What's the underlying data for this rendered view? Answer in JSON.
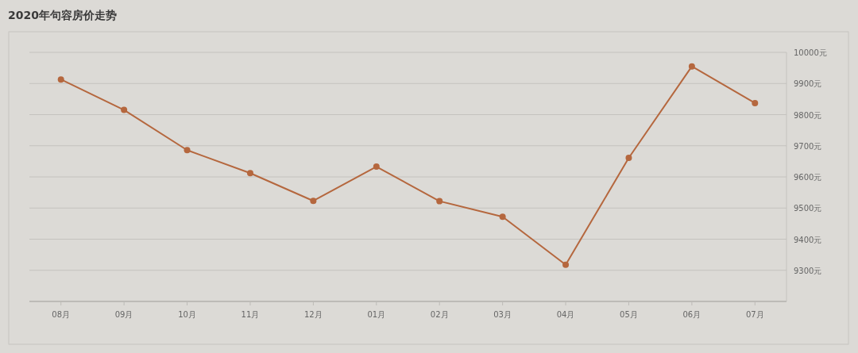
{
  "chart_data": {
    "type": "line",
    "title": "2020年句容房价走势",
    "categories": [
      "08月",
      "09月",
      "10月",
      "11月",
      "12月",
      "01月",
      "02月",
      "03月",
      "04月",
      "05月",
      "06月",
      "07月"
    ],
    "series": [
      {
        "color": "#b5673e",
        "values": [
          9913,
          9815,
          9686,
          9612,
          9523,
          9633,
          9522,
          9472,
          9318,
          9661,
          9955,
          9837
        ]
      }
    ],
    "ylim": [
      9200,
      10000
    ],
    "yticks": [
      {
        "value": 9300,
        "label": "9300元"
      },
      {
        "value": 9400,
        "label": "9400元"
      },
      {
        "value": 9500,
        "label": "9500元"
      },
      {
        "value": 9600,
        "label": "9600元"
      },
      {
        "value": 9700,
        "label": "9700元"
      },
      {
        "value": 9800,
        "label": "9800元"
      },
      {
        "value": 9900,
        "label": "9900元"
      },
      {
        "value": 10000,
        "label": "10000元"
      }
    ],
    "grid": "y",
    "marker": "circle",
    "line_style": "solid"
  }
}
